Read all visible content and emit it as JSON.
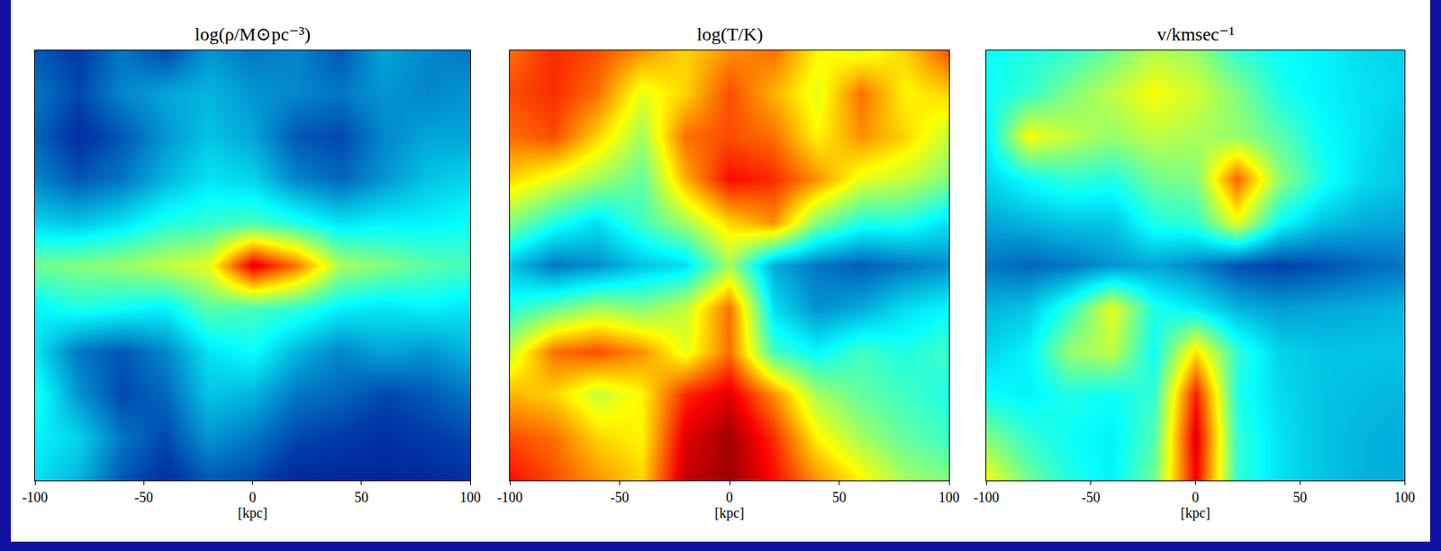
{
  "chart_data": [
    {
      "type": "heatmap",
      "title": "log(ρ/M⊙pc⁻³)",
      "xlabel": "[kpc]",
      "xlim": [
        -100,
        100
      ],
      "xticks": [
        -100,
        -50,
        0,
        50,
        100
      ],
      "ylim": [
        -100,
        100
      ],
      "tick_labels": "x",
      "zlim": [
        -6,
        -1
      ],
      "x": [
        -100,
        -80,
        -60,
        -40,
        -20,
        0,
        20,
        40,
        60,
        80,
        100
      ],
      "y": [
        100,
        80,
        60,
        40,
        20,
        0,
        -20,
        -40,
        -60,
        -80,
        -100
      ],
      "z": [
        [
          -5.2,
          -5.4,
          -5.0,
          -5.3,
          -4.8,
          -5.0,
          -4.9,
          -5.2,
          -4.7,
          -4.9,
          -5.0
        ],
        [
          -5.0,
          -5.3,
          -4.9,
          -4.7,
          -4.6,
          -4.8,
          -4.9,
          -5.0,
          -4.8,
          -4.9,
          -4.8
        ],
        [
          -5.1,
          -5.5,
          -5.2,
          -4.8,
          -4.5,
          -4.7,
          -5.2,
          -5.3,
          -4.9,
          -4.7,
          -4.7
        ],
        [
          -4.9,
          -5.2,
          -5.0,
          -4.6,
          -4.3,
          -4.4,
          -4.9,
          -5.1,
          -4.8,
          -4.5,
          -4.4
        ],
        [
          -4.4,
          -4.5,
          -4.3,
          -4.0,
          -3.9,
          -3.8,
          -4.0,
          -4.3,
          -4.2,
          -4.2,
          -4.1
        ],
        [
          -3.6,
          -3.5,
          -3.4,
          -3.2,
          -3.0,
          -1.5,
          -2.2,
          -3.3,
          -3.5,
          -3.7,
          -3.8
        ],
        [
          -4.2,
          -4.0,
          -4.1,
          -4.2,
          -3.7,
          -3.8,
          -3.9,
          -4.2,
          -4.3,
          -4.2,
          -4.3
        ],
        [
          -4.3,
          -5.0,
          -5.2,
          -4.9,
          -4.3,
          -4.1,
          -4.6,
          -4.9,
          -4.7,
          -4.8,
          -4.6
        ],
        [
          -4.0,
          -4.8,
          -5.3,
          -5.1,
          -4.5,
          -4.6,
          -5.0,
          -5.1,
          -5.3,
          -5.2,
          -5.0
        ],
        [
          -4.2,
          -4.4,
          -5.0,
          -5.3,
          -4.8,
          -5.0,
          -5.3,
          -5.4,
          -5.5,
          -5.4,
          -5.3
        ],
        [
          -4.3,
          -4.6,
          -5.2,
          -5.5,
          -5.2,
          -5.3,
          -5.6,
          -5.6,
          -5.6,
          -5.6,
          -5.5
        ]
      ]
    },
    {
      "type": "heatmap",
      "title": "log(T/K)",
      "xlabel": "[kpc]",
      "xlim": [
        -100,
        100
      ],
      "xticks": [
        -100,
        -50,
        0,
        50,
        100
      ],
      "ylim": [
        -100,
        100
      ],
      "tick_labels": "x",
      "zlim": [
        4,
        7
      ],
      "x": [
        -100,
        -80,
        -60,
        -40,
        -20,
        0,
        20,
        40,
        60,
        80,
        100
      ],
      "y": [
        100,
        80,
        60,
        40,
        20,
        0,
        -20,
        -40,
        -60,
        -80,
        -100
      ],
      "z": [
        [
          6.3,
          6.5,
          6.4,
          6.2,
          6.0,
          6.2,
          6.3,
          5.9,
          5.8,
          6.0,
          6.4
        ],
        [
          6.4,
          6.5,
          6.3,
          5.8,
          6.0,
          6.4,
          6.1,
          5.8,
          6.3,
          5.9,
          6.0
        ],
        [
          6.3,
          6.4,
          6.0,
          5.6,
          6.3,
          6.4,
          6.3,
          5.9,
          6.2,
          6.0,
          5.7
        ],
        [
          6.0,
          5.8,
          5.6,
          5.4,
          6.1,
          6.6,
          6.5,
          6.2,
          5.8,
          5.7,
          5.5
        ],
        [
          5.5,
          5.2,
          5.0,
          5.3,
          5.6,
          6.0,
          6.2,
          5.5,
          5.2,
          5.2,
          5.0
        ],
        [
          4.9,
          4.6,
          4.7,
          4.9,
          5.0,
          5.6,
          4.8,
          4.6,
          4.5,
          4.6,
          4.7
        ],
        [
          5.2,
          5.4,
          5.6,
          5.5,
          5.7,
          6.3,
          5.0,
          4.7,
          4.8,
          5.0,
          5.1
        ],
        [
          5.7,
          6.3,
          6.4,
          6.2,
          5.8,
          6.3,
          5.3,
          5.1,
          5.3,
          5.2,
          5.3
        ],
        [
          6.1,
          6.0,
          5.7,
          5.9,
          6.5,
          6.7,
          6.2,
          5.6,
          5.4,
          5.3,
          5.2
        ],
        [
          6.4,
          6.3,
          6.0,
          5.9,
          6.7,
          6.9,
          6.5,
          5.9,
          5.6,
          5.4,
          5.3
        ],
        [
          6.6,
          6.4,
          6.2,
          6.0,
          6.8,
          6.9,
          6.6,
          6.2,
          5.9,
          5.6,
          5.5
        ]
      ]
    },
    {
      "type": "heatmap",
      "title": "v/kmsec⁻¹",
      "xlabel": "[kpc]",
      "xlim": [
        -100,
        100
      ],
      "xticks": [
        -100,
        -50,
        0,
        50,
        100
      ],
      "ylim": [
        -100,
        100
      ],
      "tick_labels": "x",
      "zlim": [
        0,
        1000
      ],
      "x": [
        -100,
        -80,
        -60,
        -40,
        -20,
        0,
        20,
        40,
        60,
        80,
        100
      ],
      "y": [
        100,
        80,
        60,
        40,
        20,
        0,
        -20,
        -40,
        -60,
        -80,
        -100
      ],
      "z": [
        [
          380,
          400,
          420,
          480,
          550,
          520,
          420,
          380,
          360,
          330,
          320
        ],
        [
          380,
          420,
          500,
          560,
          620,
          580,
          500,
          400,
          360,
          340,
          320
        ],
        [
          350,
          620,
          560,
          520,
          560,
          540,
          520,
          460,
          380,
          340,
          300
        ],
        [
          320,
          380,
          420,
          400,
          480,
          500,
          780,
          520,
          400,
          330,
          300
        ],
        [
          260,
          280,
          300,
          300,
          400,
          420,
          600,
          380,
          300,
          270,
          260
        ],
        [
          200,
          180,
          200,
          240,
          260,
          220,
          150,
          130,
          150,
          180,
          200
        ],
        [
          280,
          300,
          420,
          600,
          400,
          350,
          280,
          250,
          260,
          270,
          280
        ],
        [
          320,
          360,
          520,
          560,
          380,
          650,
          420,
          320,
          300,
          300,
          300
        ],
        [
          380,
          360,
          400,
          380,
          420,
          850,
          400,
          330,
          300,
          290,
          280
        ],
        [
          500,
          420,
          380,
          360,
          450,
          900,
          420,
          340,
          300,
          280,
          270
        ],
        [
          620,
          480,
          400,
          360,
          480,
          880,
          420,
          340,
          300,
          280,
          270
        ]
      ]
    }
  ]
}
